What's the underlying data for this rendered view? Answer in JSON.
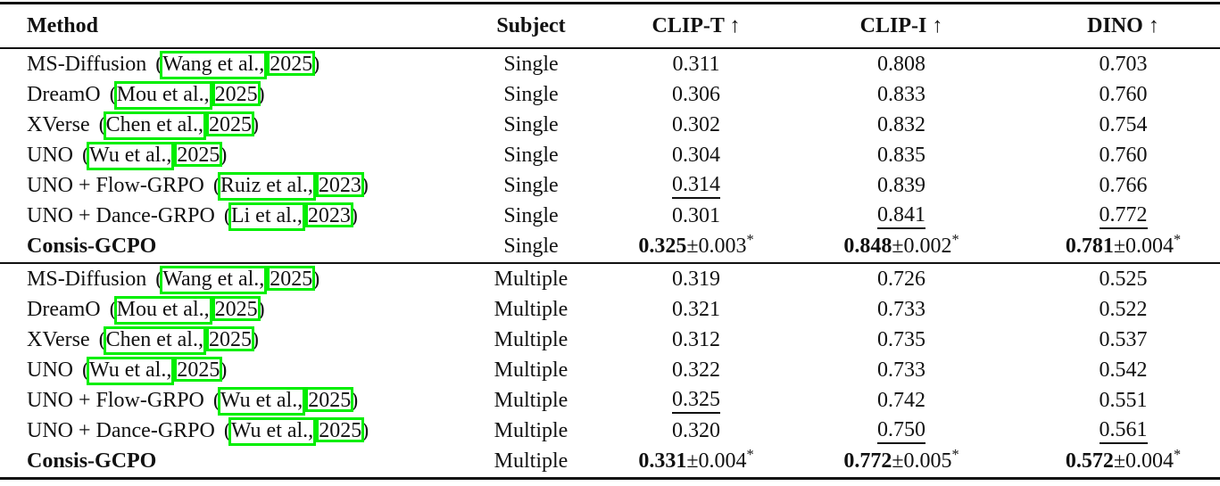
{
  "table": {
    "paren_open": "(",
    "paren_close": ")",
    "columns": [
      "Method",
      "Subject",
      "CLIP-T ↑",
      "CLIP-I ↑",
      "DINO ↑"
    ],
    "link_box_color": "#00ee00",
    "sections": [
      {
        "rows": [
          {
            "name": "MS-Diffusion",
            "bold_name": false,
            "cite_author": "Wang et al.,",
            "cite_year": "2025",
            "subject": "Single",
            "clip_t": {
              "value": "0.311"
            },
            "clip_i": {
              "value": "0.808"
            },
            "dino": {
              "value": "0.703"
            }
          },
          {
            "name": "DreamO",
            "bold_name": false,
            "cite_author": "Mou et al.,",
            "cite_year": "2025",
            "subject": "Single",
            "clip_t": {
              "value": "0.306"
            },
            "clip_i": {
              "value": "0.833"
            },
            "dino": {
              "value": "0.760"
            }
          },
          {
            "name": "XVerse",
            "bold_name": false,
            "cite_author": "Chen et al.,",
            "cite_year": "2025",
            "subject": "Single",
            "clip_t": {
              "value": "0.302"
            },
            "clip_i": {
              "value": "0.832"
            },
            "dino": {
              "value": "0.754"
            }
          },
          {
            "name": "UNO",
            "bold_name": false,
            "cite_author": "Wu et al.,",
            "cite_year": "2025",
            "subject": "Single",
            "clip_t": {
              "value": "0.304"
            },
            "clip_i": {
              "value": "0.835"
            },
            "dino": {
              "value": "0.760"
            }
          },
          {
            "name": "UNO + Flow-GRPO",
            "bold_name": false,
            "cite_author": "Ruiz et al.,",
            "cite_year": "2023",
            "subject": "Single",
            "clip_t": {
              "value": "0.314",
              "underline": true
            },
            "clip_i": {
              "value": "0.839"
            },
            "dino": {
              "value": "0.766"
            }
          },
          {
            "name": "UNO + Dance-GRPO",
            "bold_name": false,
            "cite_author": "Li et al.,",
            "cite_year": "2023",
            "subject": "Single",
            "clip_t": {
              "value": "0.301"
            },
            "clip_i": {
              "value": "0.841",
              "underline": true
            },
            "dino": {
              "value": "0.772",
              "underline": true
            }
          },
          {
            "name": "Consis-GCPO",
            "bold_name": true,
            "cite_author": null,
            "cite_year": null,
            "subject": "Single",
            "clip_t": {
              "value": "0.325",
              "bold": true,
              "pm": "±0.003",
              "sup": "*"
            },
            "clip_i": {
              "value": "0.848",
              "bold": true,
              "pm": "±0.002",
              "sup": "*"
            },
            "dino": {
              "value": "0.781",
              "bold": true,
              "pm": "±0.004",
              "sup": "*"
            }
          }
        ]
      },
      {
        "rows": [
          {
            "name": "MS-Diffusion",
            "bold_name": false,
            "cite_author": "Wang et al.,",
            "cite_year": "2025",
            "subject": "Multiple",
            "clip_t": {
              "value": "0.319"
            },
            "clip_i": {
              "value": "0.726"
            },
            "dino": {
              "value": "0.525"
            }
          },
          {
            "name": "DreamO",
            "bold_name": false,
            "cite_author": "Mou et al.,",
            "cite_year": "2025",
            "subject": "Multiple",
            "clip_t": {
              "value": "0.321"
            },
            "clip_i": {
              "value": "0.733"
            },
            "dino": {
              "value": "0.522"
            }
          },
          {
            "name": "XVerse",
            "bold_name": false,
            "cite_author": "Chen et al.,",
            "cite_year": "2025",
            "subject": "Multiple",
            "clip_t": {
              "value": "0.312"
            },
            "clip_i": {
              "value": "0.735"
            },
            "dino": {
              "value": "0.537"
            }
          },
          {
            "name": "UNO",
            "bold_name": false,
            "cite_author": "Wu et al.,",
            "cite_year": "2025",
            "subject": "Multiple",
            "clip_t": {
              "value": "0.322"
            },
            "clip_i": {
              "value": "0.733"
            },
            "dino": {
              "value": "0.542"
            }
          },
          {
            "name": "UNO + Flow-GRPO",
            "bold_name": false,
            "cite_author": "Wu et al.,",
            "cite_year": "2025",
            "subject": "Multiple",
            "clip_t": {
              "value": "0.325",
              "underline": true
            },
            "clip_i": {
              "value": "0.742"
            },
            "dino": {
              "value": "0.551"
            }
          },
          {
            "name": "UNO + Dance-GRPO",
            "bold_name": false,
            "cite_author": "Wu et al.,",
            "cite_year": "2025",
            "subject": "Multiple",
            "clip_t": {
              "value": "0.320"
            },
            "clip_i": {
              "value": "0.750",
              "underline": true
            },
            "dino": {
              "value": "0.561",
              "underline": true
            }
          },
          {
            "name": "Consis-GCPO",
            "bold_name": true,
            "cite_author": null,
            "cite_year": null,
            "subject": "Multiple",
            "clip_t": {
              "value": "0.331",
              "bold": true,
              "pm": "±0.004",
              "sup": "*"
            },
            "clip_i": {
              "value": "0.772",
              "bold": true,
              "pm": "±0.005",
              "sup": "*"
            },
            "dino": {
              "value": "0.572",
              "bold": true,
              "pm": "±0.004",
              "sup": "*"
            }
          }
        ]
      }
    ]
  }
}
